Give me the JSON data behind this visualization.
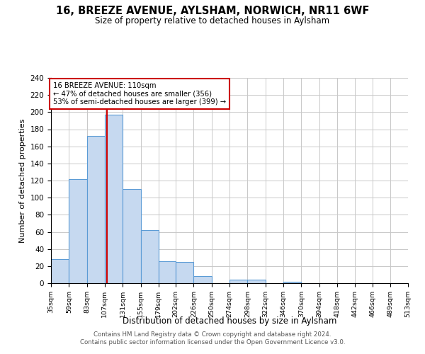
{
  "title": "16, BREEZE AVENUE, AYLSHAM, NORWICH, NR11 6WF",
  "subtitle": "Size of property relative to detached houses in Aylsham",
  "xlabel": "Distribution of detached houses by size in Aylsham",
  "ylabel": "Number of detached properties",
  "bar_edges": [
    35,
    59,
    83,
    107,
    131,
    155,
    179,
    202,
    226,
    250,
    274,
    298,
    322,
    346,
    370,
    394,
    418,
    442,
    466,
    489,
    513
  ],
  "bar_heights": [
    28,
    122,
    172,
    197,
    110,
    62,
    26,
    25,
    8,
    0,
    4,
    4,
    0,
    2,
    0,
    0,
    0,
    0,
    0,
    0
  ],
  "bar_color": "#c6d9f0",
  "bar_edge_color": "#5b9bd5",
  "property_line_x": 110,
  "property_line_color": "#cc0000",
  "annotation_text": "16 BREEZE AVENUE: 110sqm\n← 47% of detached houses are smaller (356)\n53% of semi-detached houses are larger (399) →",
  "annotation_box_color": "#ffffff",
  "annotation_box_edge_color": "#cc0000",
  "ylim": [
    0,
    240
  ],
  "yticks": [
    0,
    20,
    40,
    60,
    80,
    100,
    120,
    140,
    160,
    180,
    200,
    220,
    240
  ],
  "tick_labels": [
    "35sqm",
    "59sqm",
    "83sqm",
    "107sqm",
    "131sqm",
    "155sqm",
    "179sqm",
    "202sqm",
    "226sqm",
    "250sqm",
    "274sqm",
    "298sqm",
    "322sqm",
    "346sqm",
    "370sqm",
    "394sqm",
    "418sqm",
    "442sqm",
    "466sqm",
    "489sqm",
    "513sqm"
  ],
  "footer_line1": "Contains HM Land Registry data © Crown copyright and database right 2024.",
  "footer_line2": "Contains public sector information licensed under the Open Government Licence v3.0.",
  "background_color": "#ffffff",
  "grid_color": "#c8c8c8"
}
